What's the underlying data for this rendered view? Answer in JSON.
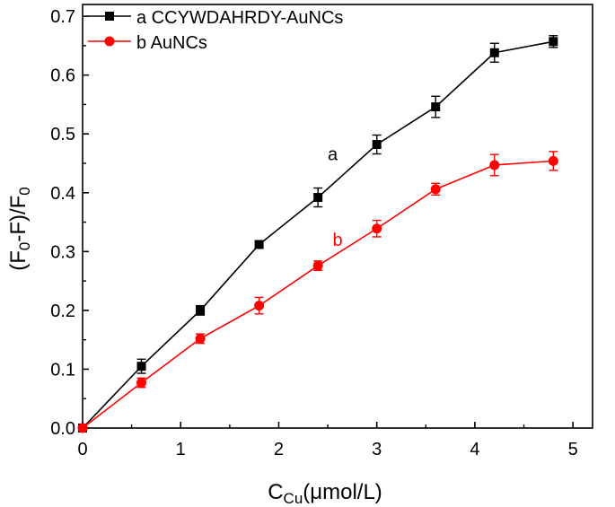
{
  "chart_data": {
    "type": "line",
    "xlabel_main": "C",
    "xlabel_sub": "Cu",
    "xlabel_unit": "(μmol/L)",
    "ylabel_open": "(F",
    "ylabel_sub1": "0",
    "ylabel_mid": "-F)/F",
    "ylabel_sub2": "0",
    "xlim": [
      0,
      5.2
    ],
    "ylim": [
      0,
      0.72
    ],
    "xticks": [
      0,
      1,
      2,
      3,
      4,
      5
    ],
    "yticks": [
      0.0,
      0.1,
      0.2,
      0.3,
      0.4,
      0.5,
      0.6,
      0.7
    ],
    "xtick_labels": [
      "0",
      "1",
      "2",
      "3",
      "4",
      "5"
    ],
    "ytick_labels": [
      "0.0",
      "0.1",
      "0.2",
      "0.3",
      "0.4",
      "0.5",
      "0.6",
      "0.7"
    ],
    "legend_position": "top-left",
    "grid": false,
    "series": [
      {
        "name": "a CCYWDAHRDY-AuNCs",
        "color": "#000000",
        "marker": "square",
        "x": [
          0,
          0.6,
          1.2,
          1.8,
          2.4,
          3.0,
          3.6,
          4.2,
          4.8
        ],
        "y": [
          0,
          0.105,
          0.2,
          0.312,
          0.392,
          0.482,
          0.546,
          0.638,
          0.657
        ],
        "err": [
          0,
          0.012,
          0.008,
          0.006,
          0.016,
          0.016,
          0.018,
          0.016,
          0.01
        ]
      },
      {
        "name": "b AuNCs",
        "color": "#ff0000",
        "marker": "circle",
        "x": [
          0,
          0.6,
          1.2,
          1.8,
          2.4,
          3.0,
          3.6,
          4.2,
          4.8
        ],
        "y": [
          0,
          0.077,
          0.152,
          0.208,
          0.276,
          0.339,
          0.406,
          0.447,
          0.454
        ],
        "err": [
          0,
          0.008,
          0.008,
          0.014,
          0.008,
          0.014,
          0.01,
          0.018,
          0.016
        ]
      }
    ],
    "annotations": [
      {
        "text": "a",
        "x": 2.55,
        "y": 0.455,
        "color": "#000000"
      },
      {
        "text": "b",
        "x": 2.6,
        "y": 0.31,
        "color": "#ff0000"
      }
    ]
  }
}
